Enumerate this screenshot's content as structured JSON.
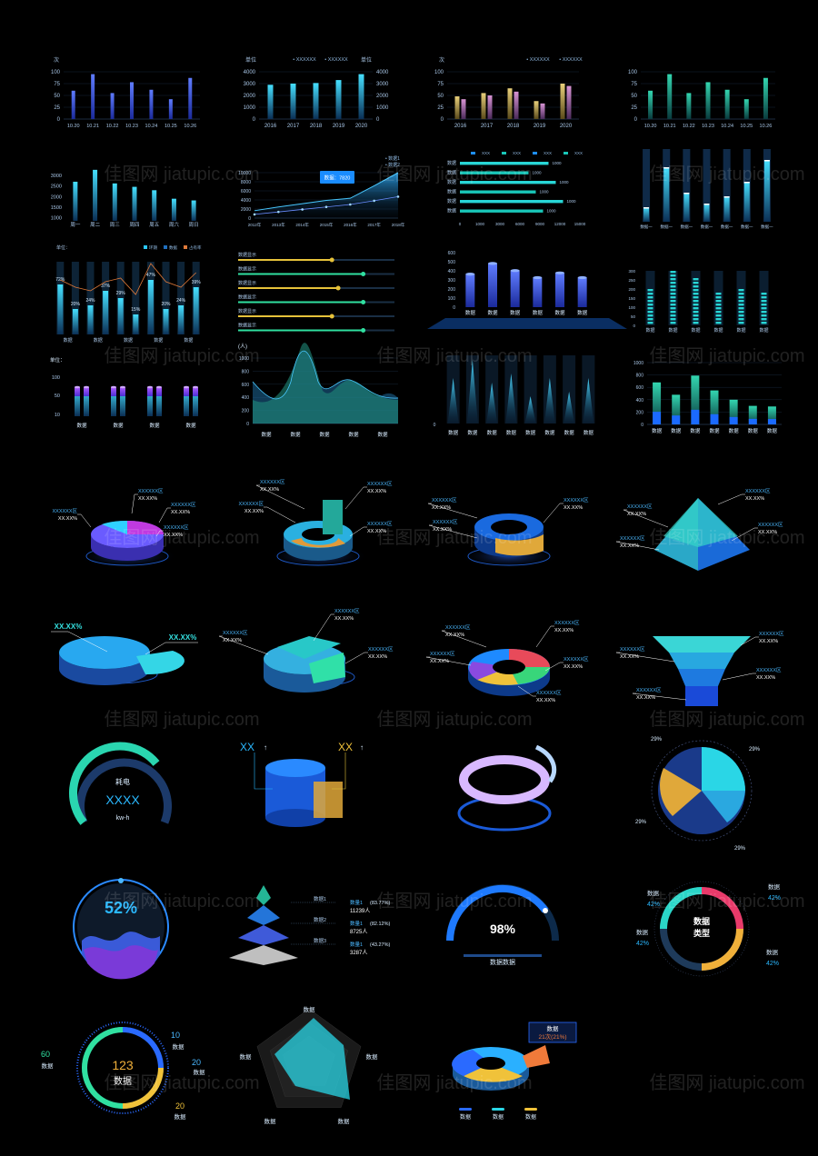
{
  "watermark": {
    "text": "佳图网 jiatupic.com"
  },
  "charts": {
    "bar1": {
      "type": "bar",
      "ylabel": "次",
      "categories": [
        "10.20",
        "10.21",
        "10.22",
        "10.23",
        "10.24",
        "10.25",
        "10.26"
      ],
      "values": [
        60,
        95,
        55,
        78,
        62,
        42,
        87
      ],
      "yticks": [
        "0",
        "25",
        "50",
        "75",
        "100"
      ],
      "ylim": [
        0,
        100
      ]
    },
    "bar2": {
      "type": "bar",
      "ylabel": "单位",
      "categories": [
        "2016",
        "2017",
        "2018",
        "2019",
        "2020"
      ],
      "values": [
        2900,
        3000,
        3050,
        3300,
        3800
      ],
      "yticks": [
        "0",
        "1000",
        "2000",
        "3000",
        "4000"
      ],
      "ylim": [
        0,
        4000
      ],
      "legend": [
        "XXXXXX",
        "XXXXXX"
      ]
    },
    "bar3": {
      "type": "bar",
      "ylabel": "次",
      "categories": [
        "2016",
        "2017",
        "2018",
        "2019",
        "2020"
      ],
      "series": [
        {
          "values": [
            48,
            55,
            65,
            38,
            75
          ]
        },
        {
          "values": [
            42,
            50,
            58,
            33,
            70
          ]
        }
      ],
      "yticks": [
        "0",
        "25",
        "50",
        "75",
        "100"
      ],
      "ylim": [
        0,
        100
      ],
      "legend": [
        "XXXXXX",
        "XXXXXX"
      ]
    },
    "bar4": {
      "type": "bar",
      "categories": [
        "10.20",
        "10.21",
        "10.22",
        "10.23",
        "10.24",
        "10.25",
        "10.26"
      ],
      "values": [
        60,
        95,
        55,
        78,
        62,
        42,
        87
      ],
      "yticks": [
        "0",
        "25",
        "50",
        "75",
        "100"
      ],
      "ylim": [
        0,
        100
      ]
    },
    "bar5": {
      "type": "bar",
      "categories": [
        "周一",
        "周二",
        "周三",
        "周四",
        "周五",
        "周六",
        "周日"
      ],
      "values": [
        2300,
        3000,
        2200,
        2000,
        1800,
        1300,
        1200
      ],
      "yticks": [
        "1000",
        "1500",
        "2000",
        "2500",
        "3000"
      ]
    },
    "line1": {
      "type": "area",
      "categories": [
        "2012年",
        "2013年",
        "2014年",
        "2015年",
        "2016年",
        "2017年",
        "2018年"
      ],
      "series": [
        {
          "values": [
            1800,
            2700,
            3500,
            4300,
            4800,
            7820,
            11000
          ]
        },
        {
          "values": [
            900,
            1500,
            2100,
            2700,
            3300,
            4200,
            5200
          ]
        }
      ],
      "yticks": [
        "0",
        "2000",
        "4000",
        "6000",
        "8000",
        "10000"
      ],
      "tooltip": "数据：7820",
      "legend": [
        "数据1",
        "数据2"
      ]
    },
    "hbar1": {
      "type": "bar",
      "categories": [
        "数据",
        "数据",
        "数据",
        "数据",
        "数据",
        "数据"
      ],
      "values": [
        1000,
        600,
        1000,
        1000,
        1000,
        1000
      ],
      "xticks": [
        "0",
        "3000",
        "6000",
        "9000",
        "12000",
        "15000",
        "1000"
      ],
      "legend": [
        "XXX",
        "XXX",
        "XXX",
        "XXX"
      ]
    },
    "vbar1": {
      "type": "bar",
      "categories": [
        "数据一",
        "数据一",
        "数据一",
        "数据一",
        "数据一",
        "数据一",
        "数据一"
      ],
      "values": [
        20,
        75,
        40,
        25,
        35,
        55,
        85
      ]
    },
    "combo1": {
      "type": "bar",
      "ylabel": "单位：",
      "categories": [
        "数据",
        "数据",
        "数据",
        "数据",
        "数据"
      ],
      "labels": [
        "72%",
        "20%",
        "24%",
        "37%",
        "29%",
        "15%",
        "47%",
        "20%",
        "24%",
        "39%"
      ],
      "legend": [
        "环期",
        "数据",
        "占有率"
      ]
    },
    "prog1": {
      "type": "bar",
      "categories": [
        "数据显示",
        "数据显示",
        "数据显示",
        "数据显示",
        "数据显示",
        "数据显示"
      ],
      "values": [
        75,
        100,
        80,
        100,
        75,
        100
      ]
    },
    "podium": {
      "type": "bar",
      "categories": [
        "数据",
        "数据",
        "数据",
        "数据",
        "数据",
        "数据"
      ],
      "values": [
        280,
        370,
        310,
        250,
        290,
        250
      ],
      "yticks": [
        "0",
        "100",
        "200",
        "300",
        "400",
        "500",
        "600"
      ]
    },
    "seg1": {
      "type": "bar",
      "categories": [
        "数据",
        "数据",
        "数据",
        "数据",
        "数据",
        "数据"
      ],
      "values": [
        200,
        300,
        250,
        170,
        200,
        170
      ],
      "yticks": [
        "0",
        "50",
        "100",
        "150",
        "200",
        "250",
        "300"
      ]
    },
    "cyl1": {
      "type": "bar",
      "ylabel": "单位：",
      "categories": [
        "数据",
        "数据",
        "数据",
        "数据"
      ],
      "yticks": [
        "10",
        "50",
        "100"
      ]
    },
    "wave1": {
      "type": "area",
      "ylabel": "(人)",
      "categories": [
        "数据",
        "数据",
        "数据",
        "数据",
        "数据"
      ],
      "yticks": [
        "0",
        "200",
        "400",
        "600",
        "800",
        "1000"
      ]
    },
    "spike1": {
      "type": "bar",
      "categories": [
        "数据",
        "数据",
        "数据",
        "数据",
        "数据",
        "数据",
        "数据",
        "数据"
      ]
    },
    "stack1": {
      "type": "bar",
      "categories": [
        "数据",
        "数据",
        "数据",
        "数据",
        "数据",
        "数据",
        "数据"
      ],
      "values": [
        680,
        480,
        790,
        550,
        400,
        300,
        290
      ],
      "yticks": [
        "0",
        "200",
        "400",
        "600",
        "800",
        "1000"
      ]
    }
  },
  "pies": {
    "p1": {
      "labels": [
        "XXXXXX区",
        "XX.XX%"
      ]
    },
    "percent_big": "XX.XX%",
    "generic_label": "XXXXXX区",
    "generic_value": "XX.XX%"
  },
  "gauges": {
    "energy": {
      "title": "耗电",
      "value": "XXXX",
      "unit": "kw-h"
    },
    "xx1": "XX",
    "wave_pct": "52%",
    "semi": {
      "value": "98%",
      "label": "数据数据"
    },
    "pie4": [
      "29%",
      "29%",
      "29%",
      "29%"
    ],
    "pyr": {
      "rows": [
        {
          "name": "数据1",
          "label": "数量1",
          "pct": "(83.77%)",
          "count": "11239人"
        },
        {
          "name": "数据2",
          "label": "数量1",
          "pct": "(82.12%)",
          "count": "8725人"
        },
        {
          "name": "数据3",
          "label": "数量1",
          "pct": "(43.27%)",
          "count": "3287人"
        }
      ]
    },
    "ring": {
      "center": "数据类型",
      "labels": [
        "数据",
        "数据",
        "数据",
        "数据"
      ],
      "values": [
        "42%",
        "42%",
        "42%",
        "42%"
      ]
    },
    "dial": {
      "center_val": "123",
      "center_label": "数据",
      "left_val": "60",
      "left_label": "数据",
      "r1": "10",
      "r1l": "数据",
      "r2": "20",
      "r2l": "数据",
      "r3": "20",
      "r3l": "数据"
    },
    "radar": {
      "labels": [
        "数据",
        "数据",
        "数据",
        "数据",
        "数据"
      ]
    },
    "donut3": {
      "tip_title": "数据",
      "tip_value": "21次(21%)",
      "legend": [
        "数据",
        "数据",
        "数据"
      ]
    }
  }
}
